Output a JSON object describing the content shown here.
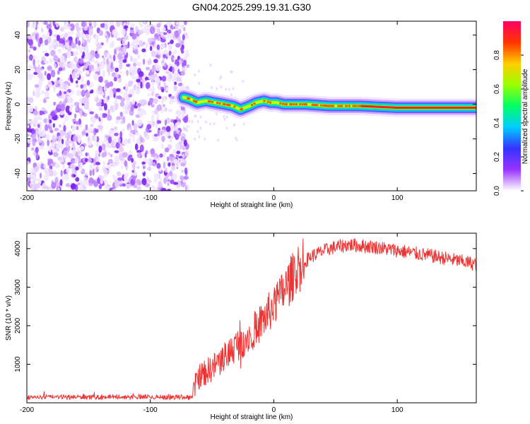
{
  "title": "GN04.2025.299.19.31.G30",
  "colors": {
    "snr_line": "#ee3333",
    "axis": "#000000",
    "background": "#ffffff"
  },
  "chart_data": [
    {
      "type": "heatmap",
      "name": "spectrogram",
      "xlabel": "Height of straight line (km)",
      "ylabel": "Frequency (Hz)",
      "xlim": [
        -200,
        164
      ],
      "ylim": [
        -50,
        48
      ],
      "xticks": [
        -200,
        -100,
        0,
        100
      ],
      "yticks": [
        -40,
        -20,
        0,
        20,
        40
      ],
      "noise_region": {
        "x": [
          -200,
          -73
        ],
        "y": [
          -50,
          48
        ]
      },
      "track": [
        {
          "x": -73,
          "y": 4
        },
        {
          "x": -68,
          "y": 3
        },
        {
          "x": -62,
          "y": 1
        },
        {
          "x": -55,
          "y": 2
        },
        {
          "x": -48,
          "y": 1
        },
        {
          "x": -40,
          "y": 0
        },
        {
          "x": -33,
          "y": -1
        },
        {
          "x": -27,
          "y": -3
        },
        {
          "x": -20,
          "y": -1
        },
        {
          "x": -14,
          "y": 1
        },
        {
          "x": -8,
          "y": 2
        },
        {
          "x": -3,
          "y": 1
        },
        {
          "x": 2,
          "y": 1
        },
        {
          "x": 8,
          "y": 0
        },
        {
          "x": 14,
          "y": 0
        },
        {
          "x": 25,
          "y": 0
        },
        {
          "x": 45,
          "y": -1
        },
        {
          "x": 70,
          "y": -1
        },
        {
          "x": 100,
          "y": -2
        },
        {
          "x": 130,
          "y": -2
        },
        {
          "x": 164,
          "y": -2
        }
      ]
    },
    {
      "type": "colorbar",
      "name": "amplitude-colorbar",
      "label": "Normalized spectral amplitude",
      "range": [
        0,
        1
      ],
      "ticks": [
        "0.0",
        "0.2",
        "0.4",
        "0.6",
        "0.8"
      ],
      "colormap": [
        "#ffffff",
        "#9933ff",
        "#3333ff",
        "#00ccff",
        "#00ff66",
        "#99ff00",
        "#ffcc00",
        "#ff3300",
        "#ff0066"
      ]
    },
    {
      "type": "line",
      "name": "snr",
      "xlabel": "Height of straight line (km)",
      "ylabel": "SNR (10 * v/v)",
      "xlim": [
        -200,
        164
      ],
      "ylim": [
        0,
        4400
      ],
      "xticks": [
        -200,
        -100,
        0,
        100
      ],
      "yticks": [
        1000,
        2000,
        3000,
        4000
      ],
      "series": [
        {
          "name": "SNR",
          "profile": [
            {
              "x": -200,
              "y": 150
            },
            {
              "x": -66,
              "y": 150
            },
            {
              "x": -62,
              "y": 650
            },
            {
              "x": -50,
              "y": 900
            },
            {
              "x": -40,
              "y": 1200
            },
            {
              "x": -30,
              "y": 1500
            },
            {
              "x": -20,
              "y": 1750
            },
            {
              "x": -10,
              "y": 2100
            },
            {
              "x": 0,
              "y": 2500
            },
            {
              "x": 10,
              "y": 3000
            },
            {
              "x": 20,
              "y": 3500
            },
            {
              "x": 30,
              "y": 3800
            },
            {
              "x": 45,
              "y": 4000
            },
            {
              "x": 60,
              "y": 4100
            },
            {
              "x": 80,
              "y": 4050
            },
            {
              "x": 100,
              "y": 3950
            },
            {
              "x": 130,
              "y": 3800
            },
            {
              "x": 164,
              "y": 3600
            }
          ]
        }
      ]
    }
  ]
}
